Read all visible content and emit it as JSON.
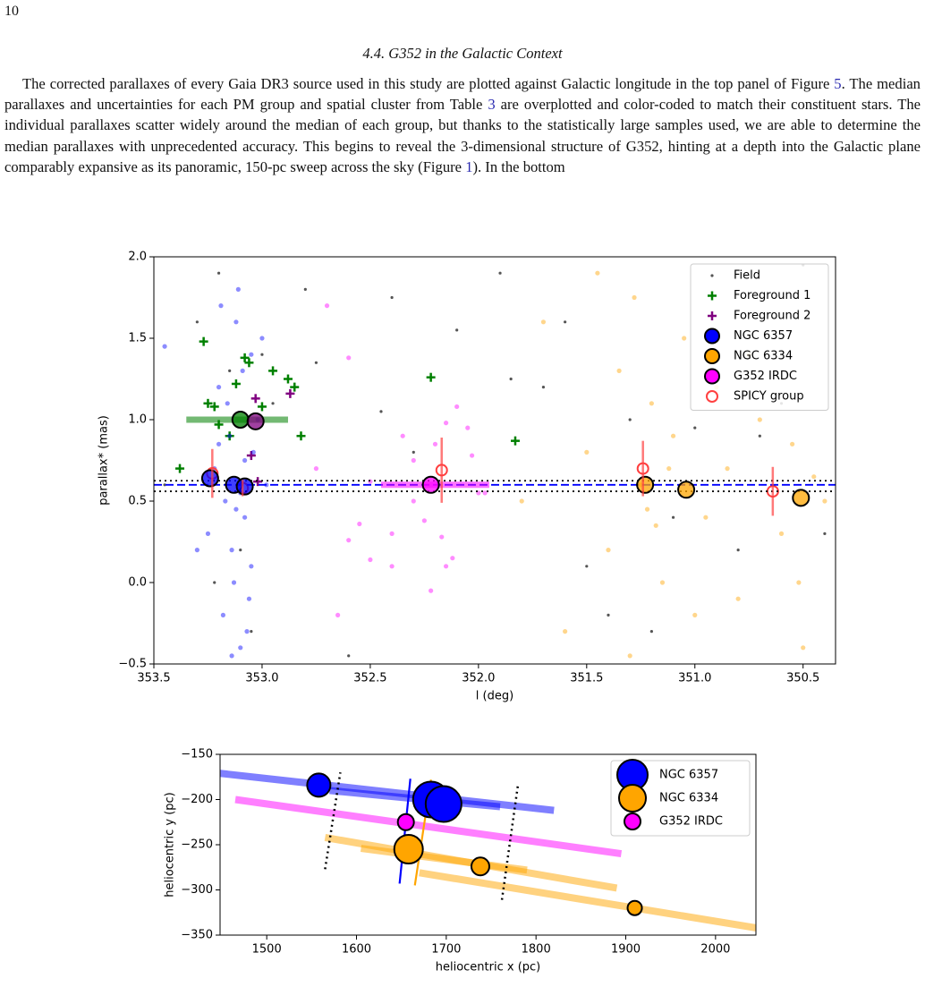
{
  "page_number": "10",
  "section_heading": "4.4. G352 in the Galactic Context",
  "paragraph": [
    "The corrected parallaxes of every Gaia DR3 source used in this study are plotted against Galactic longitude in the top panel of Figure ",
    "5",
    ". The median parallaxes and uncertainties for each PM group and spatial cluster from Table ",
    "3",
    " are overplotted and color-coded to match their constituent stars. The individual parallaxes scatter widely around the median of each group, but thanks to the statistically large samples used, we are able to determine the median parallaxes with unprecedented accuracy. This begins to reveal the 3-dimensional structure of G352, hinting at a depth into the Galactic plane comparably expansive as its panoramic, 150-pc sweep across the sky (Figure ",
    "1",
    "). In the bottom"
  ],
  "chart_data": [
    {
      "type": "scatter",
      "xlabel": "l (deg)",
      "ylabel": "parallax* (mas)",
      "xlim": [
        353.5,
        350.35
      ],
      "ylim": [
        -0.5,
        2.0
      ],
      "xticks": [
        353.5,
        {
          "value": 353,
          "label": "353.0"
        },
        352.5,
        {
          "value": 352,
          "label": "352.0"
        },
        351.5,
        {
          "value": 351,
          "label": "351.0"
        },
        350.5
      ],
      "yticks": [
        {
          "value": -0.5,
          "label": "−0.5"
        },
        {
          "value": 0,
          "label": "0.0"
        },
        0.5,
        {
          "value": 1,
          "label": "1.0"
        },
        1.5,
        {
          "value": 2,
          "label": "2.0"
        }
      ],
      "legend": "upper right",
      "hlines": [
        {
          "value": 0.6,
          "color": "#0000ff",
          "style": "dashed"
        },
        {
          "value": 0.56,
          "color": "#000000",
          "style": "dotted"
        },
        {
          "value": 0.625,
          "color": "#000000",
          "style": "dotted"
        }
      ],
      "series": [
        {
          "name": "Field",
          "color": "#555555",
          "marker": "dot",
          "x": [
            353.45,
            353.3,
            353.2,
            353.15,
            353.1,
            353.05,
            352.95,
            352.8,
            352.6,
            352.4,
            352.3,
            352.1,
            351.9,
            351.7,
            351.5,
            351.3,
            351.2,
            351.1,
            350.9,
            350.7,
            350.5,
            350.4,
            353.22,
            353.0,
            351.6,
            350.8,
            352.75,
            352.45,
            351.85,
            351.4,
            351.0,
            350.6
          ],
          "y": [
            0.6,
            1.6,
            1.9,
            1.3,
            0.2,
            -0.3,
            1.1,
            1.8,
            -0.45,
            1.75,
            0.8,
            1.55,
            1.9,
            1.2,
            0.1,
            1.0,
            -0.3,
            0.4,
            1.5,
            0.9,
            1.95,
            0.3,
            0.0,
            1.4,
            1.6,
            0.2,
            1.35,
            1.05,
            1.25,
            -0.2,
            0.95,
            1.1
          ]
        },
        {
          "name": "Foreground 1",
          "color": "#008000",
          "marker": "plus",
          "x": [
            353.27,
            353.25,
            353.22,
            353.2,
            353.12,
            353.08,
            353.06,
            353.0,
            352.95,
            352.88,
            352.85,
            352.82,
            353.38,
            352.22,
            351.83,
            353.15
          ],
          "y": [
            1.48,
            1.1,
            1.08,
            0.97,
            1.22,
            1.38,
            1.35,
            1.08,
            1.3,
            1.25,
            1.2,
            0.9,
            0.7,
            1.26,
            0.87,
            0.9
          ],
          "medians": {
            "x": [
              353.1
            ],
            "y": [
              1.0
            ]
          },
          "bands": [
            {
              "x": [
                353.35,
                352.88
              ],
              "y": 1.0
            }
          ]
        },
        {
          "name": "Foreground 2",
          "color": "#800080",
          "marker": "plus",
          "x": [
            353.03,
            352.87,
            353.05,
            353.02
          ],
          "y": [
            1.13,
            1.16,
            0.78,
            0.62
          ],
          "medians": {
            "x": [
              353.03
            ],
            "y": [
              0.99
            ]
          }
        },
        {
          "name": "NGC 6357",
          "color": "#0000ff",
          "marker": "circle",
          "x": [
            353.25,
            353.2,
            353.18,
            353.15,
            353.12,
            353.1,
            353.08,
            353.05,
            353.02,
            353.0,
            353.22,
            353.14,
            353.11,
            353.06,
            353.17,
            353.09,
            353.13,
            353.04,
            353.19,
            353.07,
            353.3,
            352.98,
            353.16,
            353.1,
            353.12,
            353.08,
            353.2,
            353.05,
            353.14,
            353.45
          ],
          "y": [
            0.3,
            1.2,
            -0.2,
            0.9,
            1.6,
            -0.4,
            0.4,
            0.1,
            1.0,
            1.5,
            0.7,
            0.2,
            1.8,
            -0.1,
            0.5,
            1.3,
            0.0,
            0.8,
            1.7,
            -0.3,
            0.2,
            0.6,
            1.1,
            0.55,
            0.45,
            0.75,
            0.85,
            1.4,
            -0.45,
            1.45
          ],
          "medians": {
            "x": [
              353.24,
              353.13,
              353.08
            ],
            "y": [
              0.64,
              0.6,
              0.59
            ]
          }
        },
        {
          "name": "NGC 6334",
          "color": "#ffa500",
          "marker": "circle",
          "x": [
            351.8,
            351.7,
            351.6,
            351.5,
            351.45,
            351.4,
            351.35,
            351.3,
            351.25,
            351.2,
            351.15,
            351.1,
            351.05,
            351.0,
            350.95,
            350.9,
            350.85,
            350.8,
            350.7,
            350.6,
            350.55,
            350.5,
            350.45,
            350.4,
            351.28,
            351.22,
            351.18,
            351.12,
            350.52,
            350.75
          ],
          "y": [
            0.5,
            1.6,
            -0.3,
            0.8,
            1.9,
            0.2,
            1.3,
            -0.45,
            0.6,
            1.1,
            0.0,
            0.9,
            1.5,
            -0.2,
            0.4,
            1.2,
            0.7,
            -0.1,
            1.0,
            0.3,
            0.85,
            -0.4,
            0.65,
            0.5,
            1.75,
            0.45,
            0.35,
            0.7,
            0.0,
            1.4
          ],
          "medians": {
            "x": [
              351.23,
              351.04,
              350.51
            ],
            "y": [
              0.6,
              0.57,
              0.52
            ]
          }
        },
        {
          "name": "G352 IRDC",
          "color": "#ff00ff",
          "marker": "circle",
          "x": [
            352.7,
            352.6,
            352.75,
            352.5,
            352.55,
            352.6,
            352.5,
            352.4,
            352.3,
            352.2,
            352.17,
            352.1,
            352.05,
            352.0,
            352.15,
            352.12,
            352.35,
            352.22,
            352.65,
            352.3,
            352.03,
            351.97,
            352.25,
            352.15,
            352.4
          ],
          "y": [
            1.7,
            1.38,
            0.7,
            0.62,
            0.36,
            0.26,
            0.14,
            0.3,
            0.75,
            0.85,
            0.28,
            1.08,
            0.95,
            0.55,
            0.1,
            0.15,
            0.9,
            -0.05,
            -0.2,
            0.5,
            0.78,
            0.55,
            0.38,
            0.98,
            0.1
          ],
          "medians": {
            "x": [
              352.22
            ],
            "y": [
              0.6
            ]
          },
          "bands": [
            {
              "x": [
                352.45,
                351.95
              ],
              "y": 0.6
            }
          ]
        },
        {
          "name": "SPICY group",
          "color": "#ff4040",
          "marker": "open-circle",
          "x": [
            353.23,
            353.09,
            352.17,
            351.24,
            350.64
          ],
          "y": [
            0.67,
            0.58,
            0.69,
            0.7,
            0.56
          ],
          "yerr": [
            0.15,
            0.05,
            0.2,
            0.17,
            0.15
          ]
        }
      ]
    },
    {
      "type": "bubble",
      "xlabel": "heliocentric x (pc)",
      "ylabel": "heliocentric y (pc)",
      "xlim": [
        1448,
        2045
      ],
      "ylim": [
        -350,
        -150
      ],
      "xticks": [
        1500,
        1600,
        1700,
        1800,
        1900,
        2000
      ],
      "yticks": [
        {
          "value": -350,
          "label": "−350"
        },
        {
          "value": -300,
          "label": "−300"
        },
        {
          "value": -250,
          "label": "−250"
        },
        {
          "value": -200,
          "label": "−200"
        },
        {
          "value": -150,
          "label": "−150"
        }
      ],
      "legend": "upper right",
      "lines": [
        {
          "x": [
            1565,
            1582
          ],
          "y": [
            -277,
            -170
          ],
          "color": "#000000",
          "style": "dotted"
        },
        {
          "x": [
            1762,
            1780
          ],
          "y": [
            -311,
            -183
          ],
          "color": "#000000",
          "style": "dotted"
        },
        {
          "x": [
            1648,
            1660
          ],
          "y": [
            -293,
            -177
          ],
          "color": "#0000ff",
          "style": "solid"
        },
        {
          "x": [
            1665,
            1683
          ],
          "y": [
            -295,
            -178
          ],
          "color": "#ffa500",
          "style": "solid"
        }
      ],
      "series": [
        {
          "name": "NGC 6357",
          "color": "#0000ff",
          "x": [
            1558,
            1683,
            1697
          ],
          "y": [
            -184,
            -200,
            -205
          ],
          "sizes": [
            676,
            1600,
            1600
          ],
          "bands": [
            {
              "x": [
                1448,
                1820
              ],
              "y": [
                -171,
                -212
              ]
            },
            {
              "x": [
                1570,
                1760
              ],
              "y": [
                -190,
                -208
              ]
            }
          ]
        },
        {
          "name": "NGC 6334",
          "color": "#ffa500",
          "x": [
            1658,
            1738,
            1910
          ],
          "y": [
            -255,
            -274,
            -320
          ],
          "sizes": [
            1024,
            400,
            256
          ],
          "bands": [
            {
              "x": [
                1565,
                1890
              ],
              "y": [
                -242,
                -298
              ]
            },
            {
              "x": [
                1605,
                1790
              ],
              "y": [
                -254,
                -278
              ]
            },
            {
              "x": [
                1670,
                2045
              ],
              "y": [
                -281,
                -342
              ]
            }
          ]
        },
        {
          "name": "G352 IRDC",
          "color": "#ff00ff",
          "x": [
            1655
          ],
          "y": [
            -225
          ],
          "sizes": [
            324
          ],
          "bands": [
            {
              "x": [
                1465,
                1895
              ],
              "y": [
                -200,
                -260
              ]
            }
          ]
        }
      ]
    }
  ]
}
